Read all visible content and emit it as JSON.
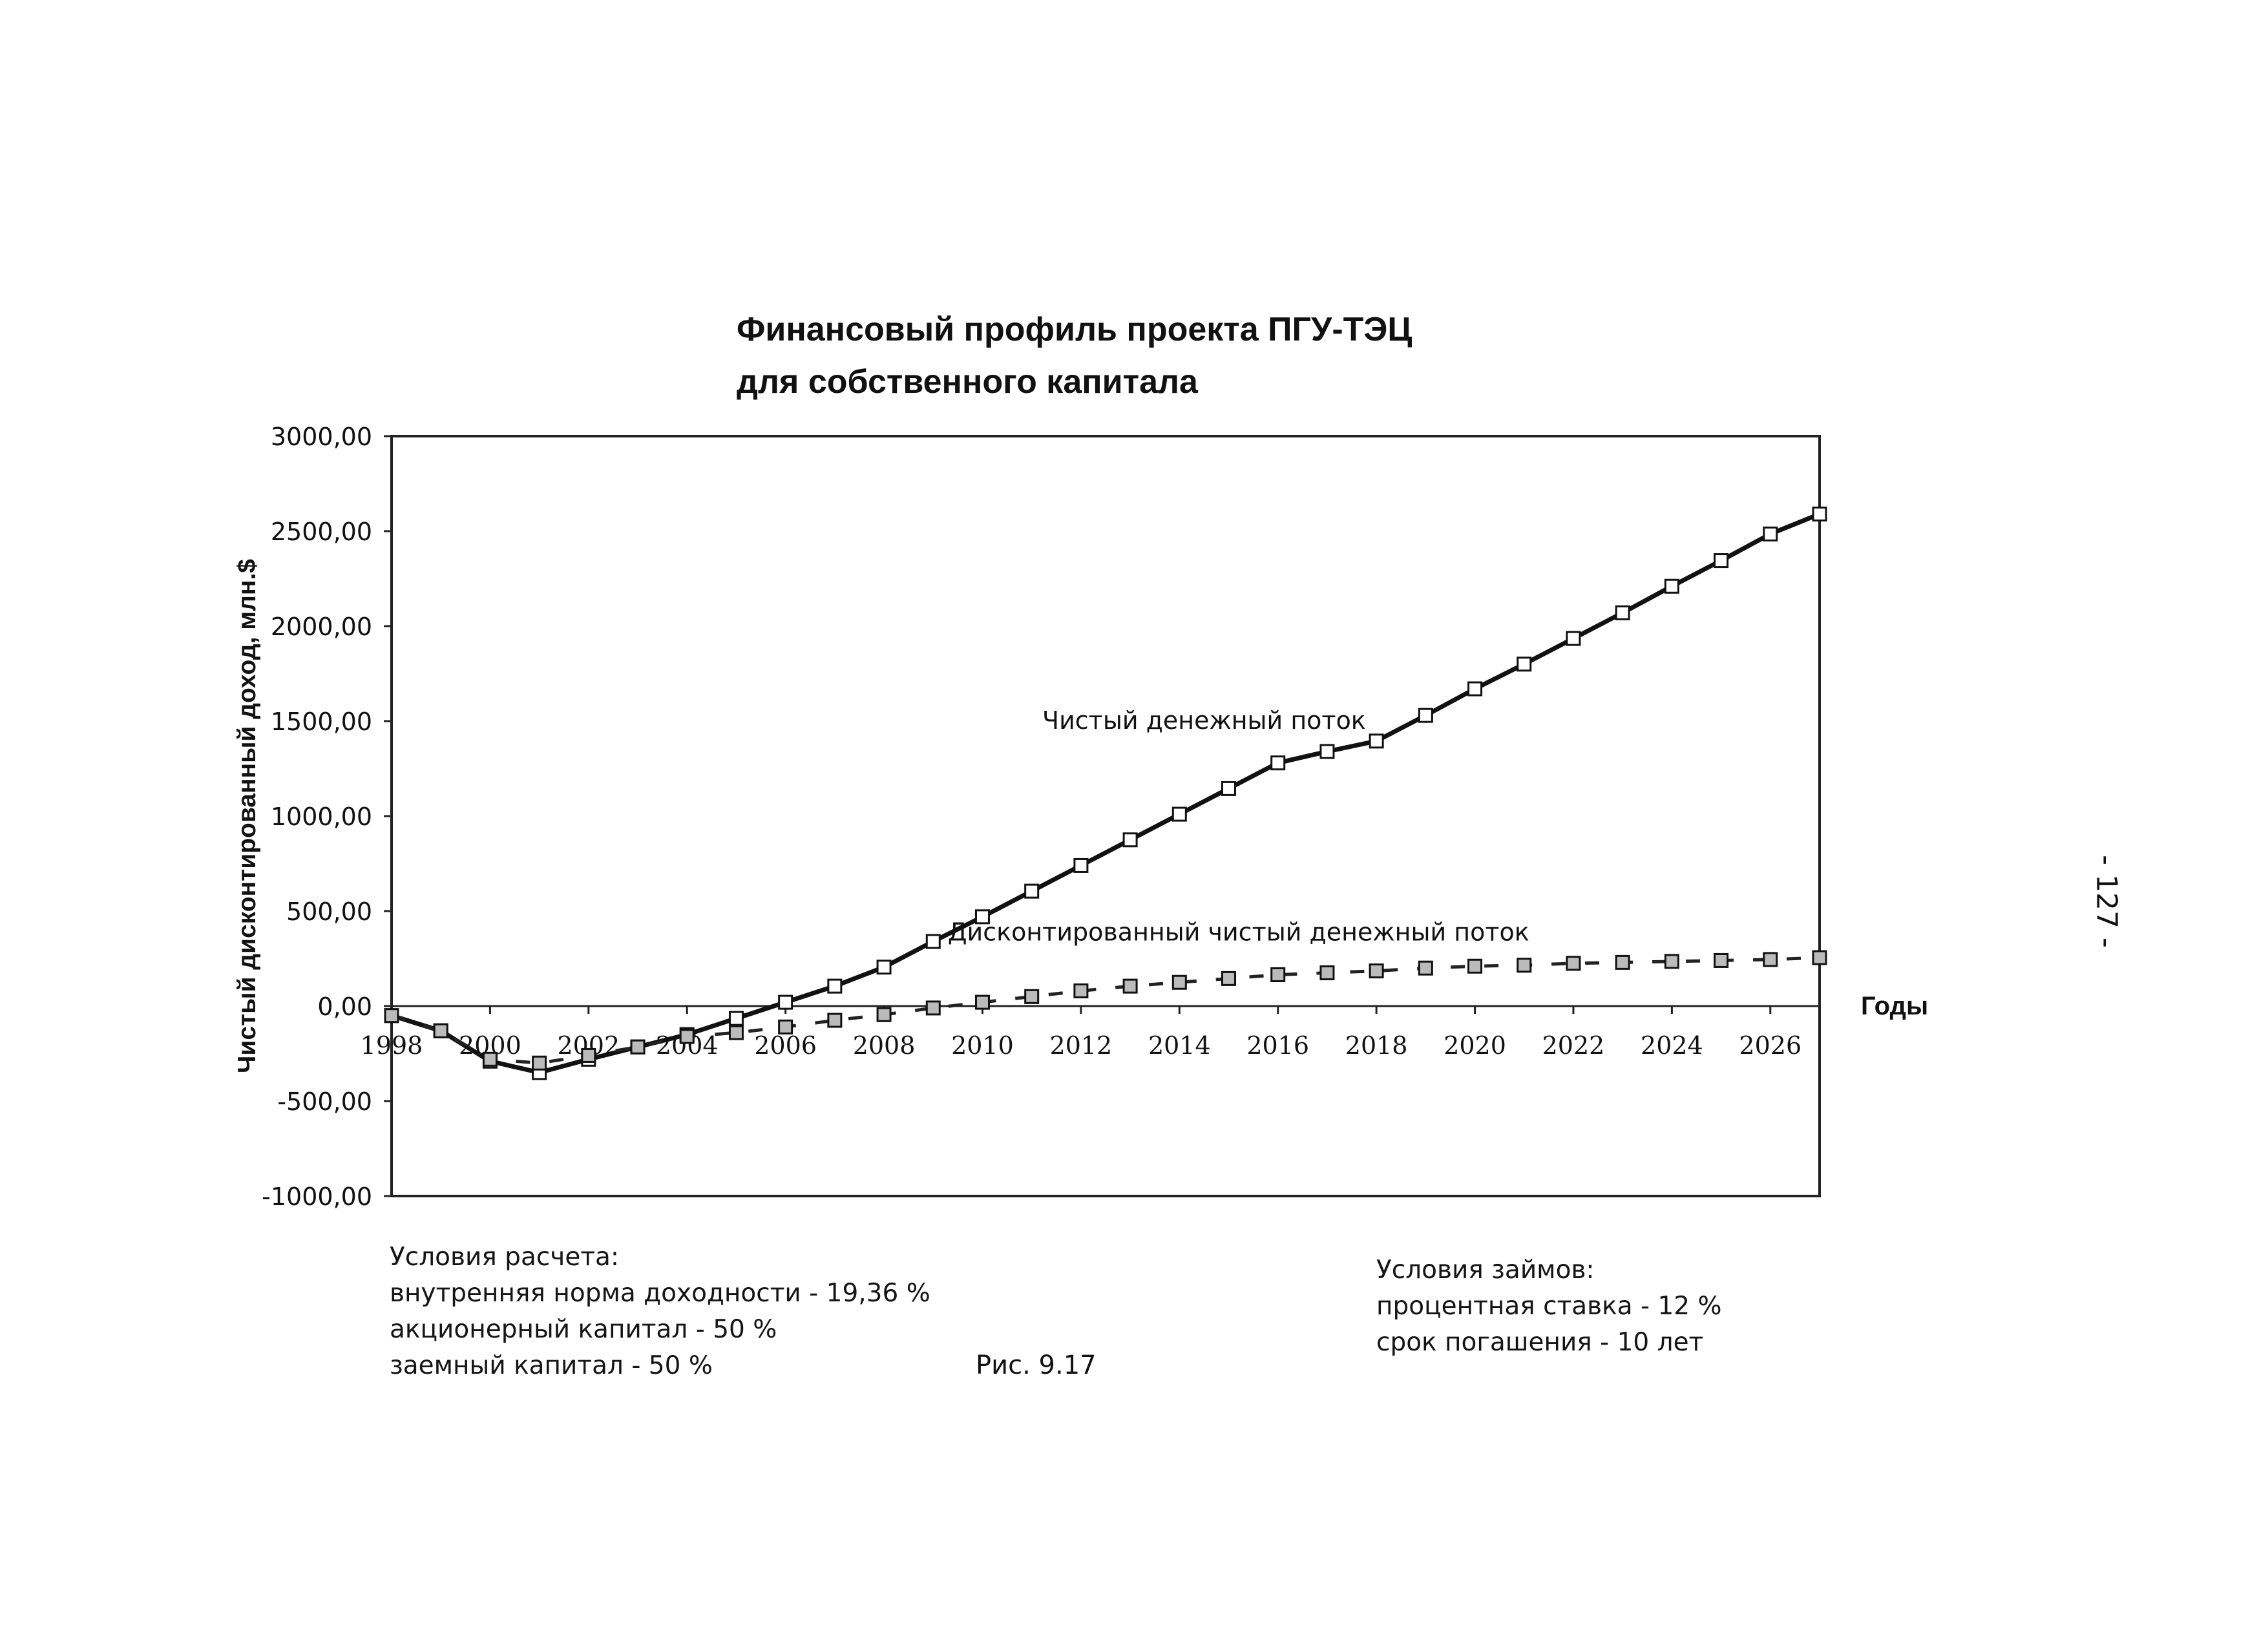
{
  "page": {
    "page_number": "- 127 -"
  },
  "chart_data": {
    "type": "line",
    "title": "Финансовый профиль проекта ПГУ-ТЭЦ",
    "subtitle": "для собственного капитала",
    "xlabel": "Годы",
    "ylabel": "Чистый дисконтированный доход, млн.$",
    "xlim": [
      1998,
      2027
    ],
    "ylim": [
      -1000,
      3000
    ],
    "y_ticks": [
      3000,
      2500,
      2000,
      1500,
      1000,
      500,
      0,
      -500,
      -1000
    ],
    "y_tick_labels": [
      "3000,00",
      "2500,00",
      "2000,00",
      "1500,00",
      "1000,00",
      "500,00",
      "0,00",
      "-500,00",
      "-1000,00"
    ],
    "x_ticks": [
      1998,
      2000,
      2002,
      2004,
      2006,
      2008,
      2010,
      2012,
      2014,
      2016,
      2018,
      2020,
      2022,
      2024,
      2026
    ],
    "x_tick_labels": [
      "1998",
      "2000",
      "2002",
      "2004",
      "2006",
      "2008",
      "2010",
      "2012",
      "2014",
      "2016",
      "2018",
      "2020",
      "2022",
      "2024",
      "2026"
    ],
    "grid": false,
    "x": [
      1998,
      1999,
      2000,
      2001,
      2002,
      2003,
      2004,
      2005,
      2006,
      2007,
      2008,
      2009,
      2010,
      2011,
      2012,
      2013,
      2014,
      2015,
      2016,
      2017,
      2018,
      2019,
      2020,
      2021,
      2022,
      2023,
      2024,
      2025,
      2026,
      2027
    ],
    "series": [
      {
        "name": "Чистый денежный поток",
        "style": "solid",
        "color": "#111111",
        "values": [
          -50,
          -130,
          -290,
          -350,
          -280,
          -215,
          -150,
          -65,
          20,
          105,
          205,
          340,
          470,
          605,
          740,
          875,
          1010,
          1145,
          1280,
          1340,
          1395,
          1530,
          1670,
          1800,
          1935,
          2070,
          2210,
          2345,
          2485,
          2590
        ]
      },
      {
        "name": "Дисконтированный чистый денежный поток",
        "style": "dashed",
        "color": "#222222",
        "values": [
          -50,
          -130,
          -280,
          -300,
          -260,
          -215,
          -160,
          -140,
          -110,
          -75,
          -45,
          -10,
          20,
          50,
          80,
          105,
          125,
          145,
          165,
          175,
          185,
          200,
          210,
          215,
          225,
          230,
          235,
          240,
          245,
          255
        ]
      }
    ],
    "annotations": [
      {
        "text": "Чистый денежный поток",
        "x": 2014.5,
        "y": 1460
      },
      {
        "text": "Дисконтированный чистый денежный поток",
        "x": 2015.2,
        "y": 345
      }
    ]
  },
  "notes": {
    "left": {
      "heading": "Условия расчета:",
      "lines": [
        "внутренняя норма доходности -  19,36 %",
        "акционерный капитал - 50 %",
        "заемный капитал - 50 %"
      ]
    },
    "right": {
      "heading": "Условия займов:",
      "lines": [
        "процентная ставка - 12 %",
        "срок погашения - 10 лет"
      ]
    },
    "caption": "Рис. 9.17"
  }
}
